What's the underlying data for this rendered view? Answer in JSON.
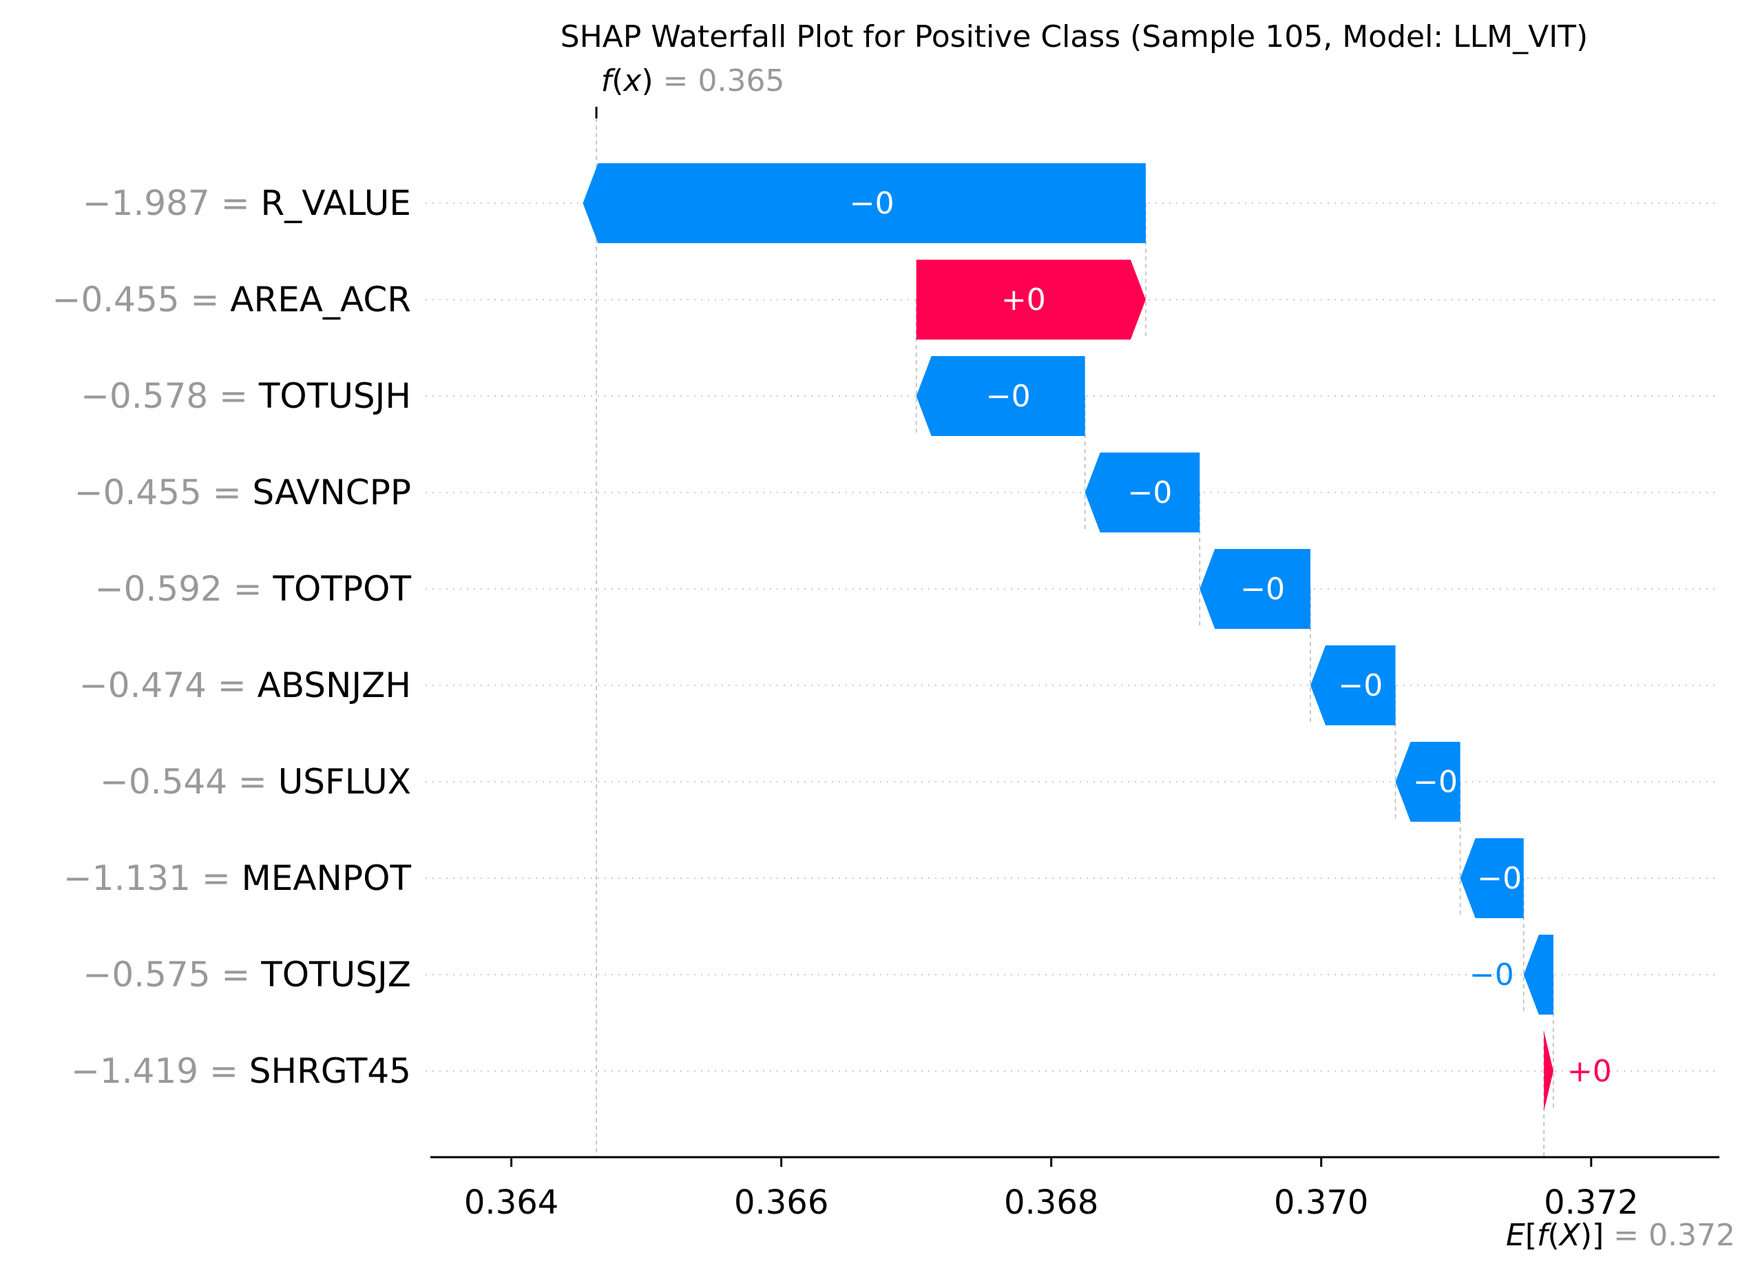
{
  "chart_data": {
    "type": "waterfall",
    "title": "SHAP Waterfall Plot for Positive Class (Sample 105, Model: LLM_VIT)",
    "fx": {
      "label_fn": "f",
      "label_arg": "x",
      "value_text": "0.365",
      "value": 0.36463
    },
    "efx": {
      "label_pre": "E[",
      "label_fn": "f",
      "label_arg": "X",
      "label_post": "]",
      "value_text": "0.372",
      "value": 0.37165
    },
    "xlim": [
      0.3634,
      0.37295
    ],
    "xticks": [
      0.364,
      0.366,
      0.368,
      0.37,
      0.372
    ],
    "xtick_labels": [
      "0.364",
      "0.366",
      "0.368",
      "0.370",
      "0.372"
    ],
    "features": [
      {
        "name": "R_VALUE",
        "value_text": "−1.987",
        "shap": -0.00417,
        "label": "−0"
      },
      {
        "name": "AREA_ACR",
        "value_text": "−0.455",
        "shap": 0.0017,
        "label": "+0"
      },
      {
        "name": "TOTUSJH",
        "value_text": "−0.578",
        "shap": -0.00125,
        "label": "−0"
      },
      {
        "name": "SAVNCPP",
        "value_text": "−0.455",
        "shap": -0.00085,
        "label": "−0"
      },
      {
        "name": "TOTPOT",
        "value_text": "−0.592",
        "shap": -0.00082,
        "label": "−0"
      },
      {
        "name": "ABSNJZH",
        "value_text": "−0.474",
        "shap": -0.00063,
        "label": "−0"
      },
      {
        "name": "USFLUX",
        "value_text": "−0.544",
        "shap": -0.00048,
        "label": "−0"
      },
      {
        "name": "MEANPOT",
        "value_text": "−1.131",
        "shap": -0.00047,
        "label": "−0"
      },
      {
        "name": "TOTUSJZ",
        "value_text": "−0.575",
        "shap": -0.00022,
        "label": "−0"
      },
      {
        "name": "SHRGT45",
        "value_text": "−1.419",
        "shap": 7e-05,
        "label": "+0"
      }
    ],
    "colors": {
      "positive": "#ff0051",
      "negative": "#008bfb",
      "value_gray": "#999999",
      "grid": "#cccccc"
    },
    "grid": true
  }
}
